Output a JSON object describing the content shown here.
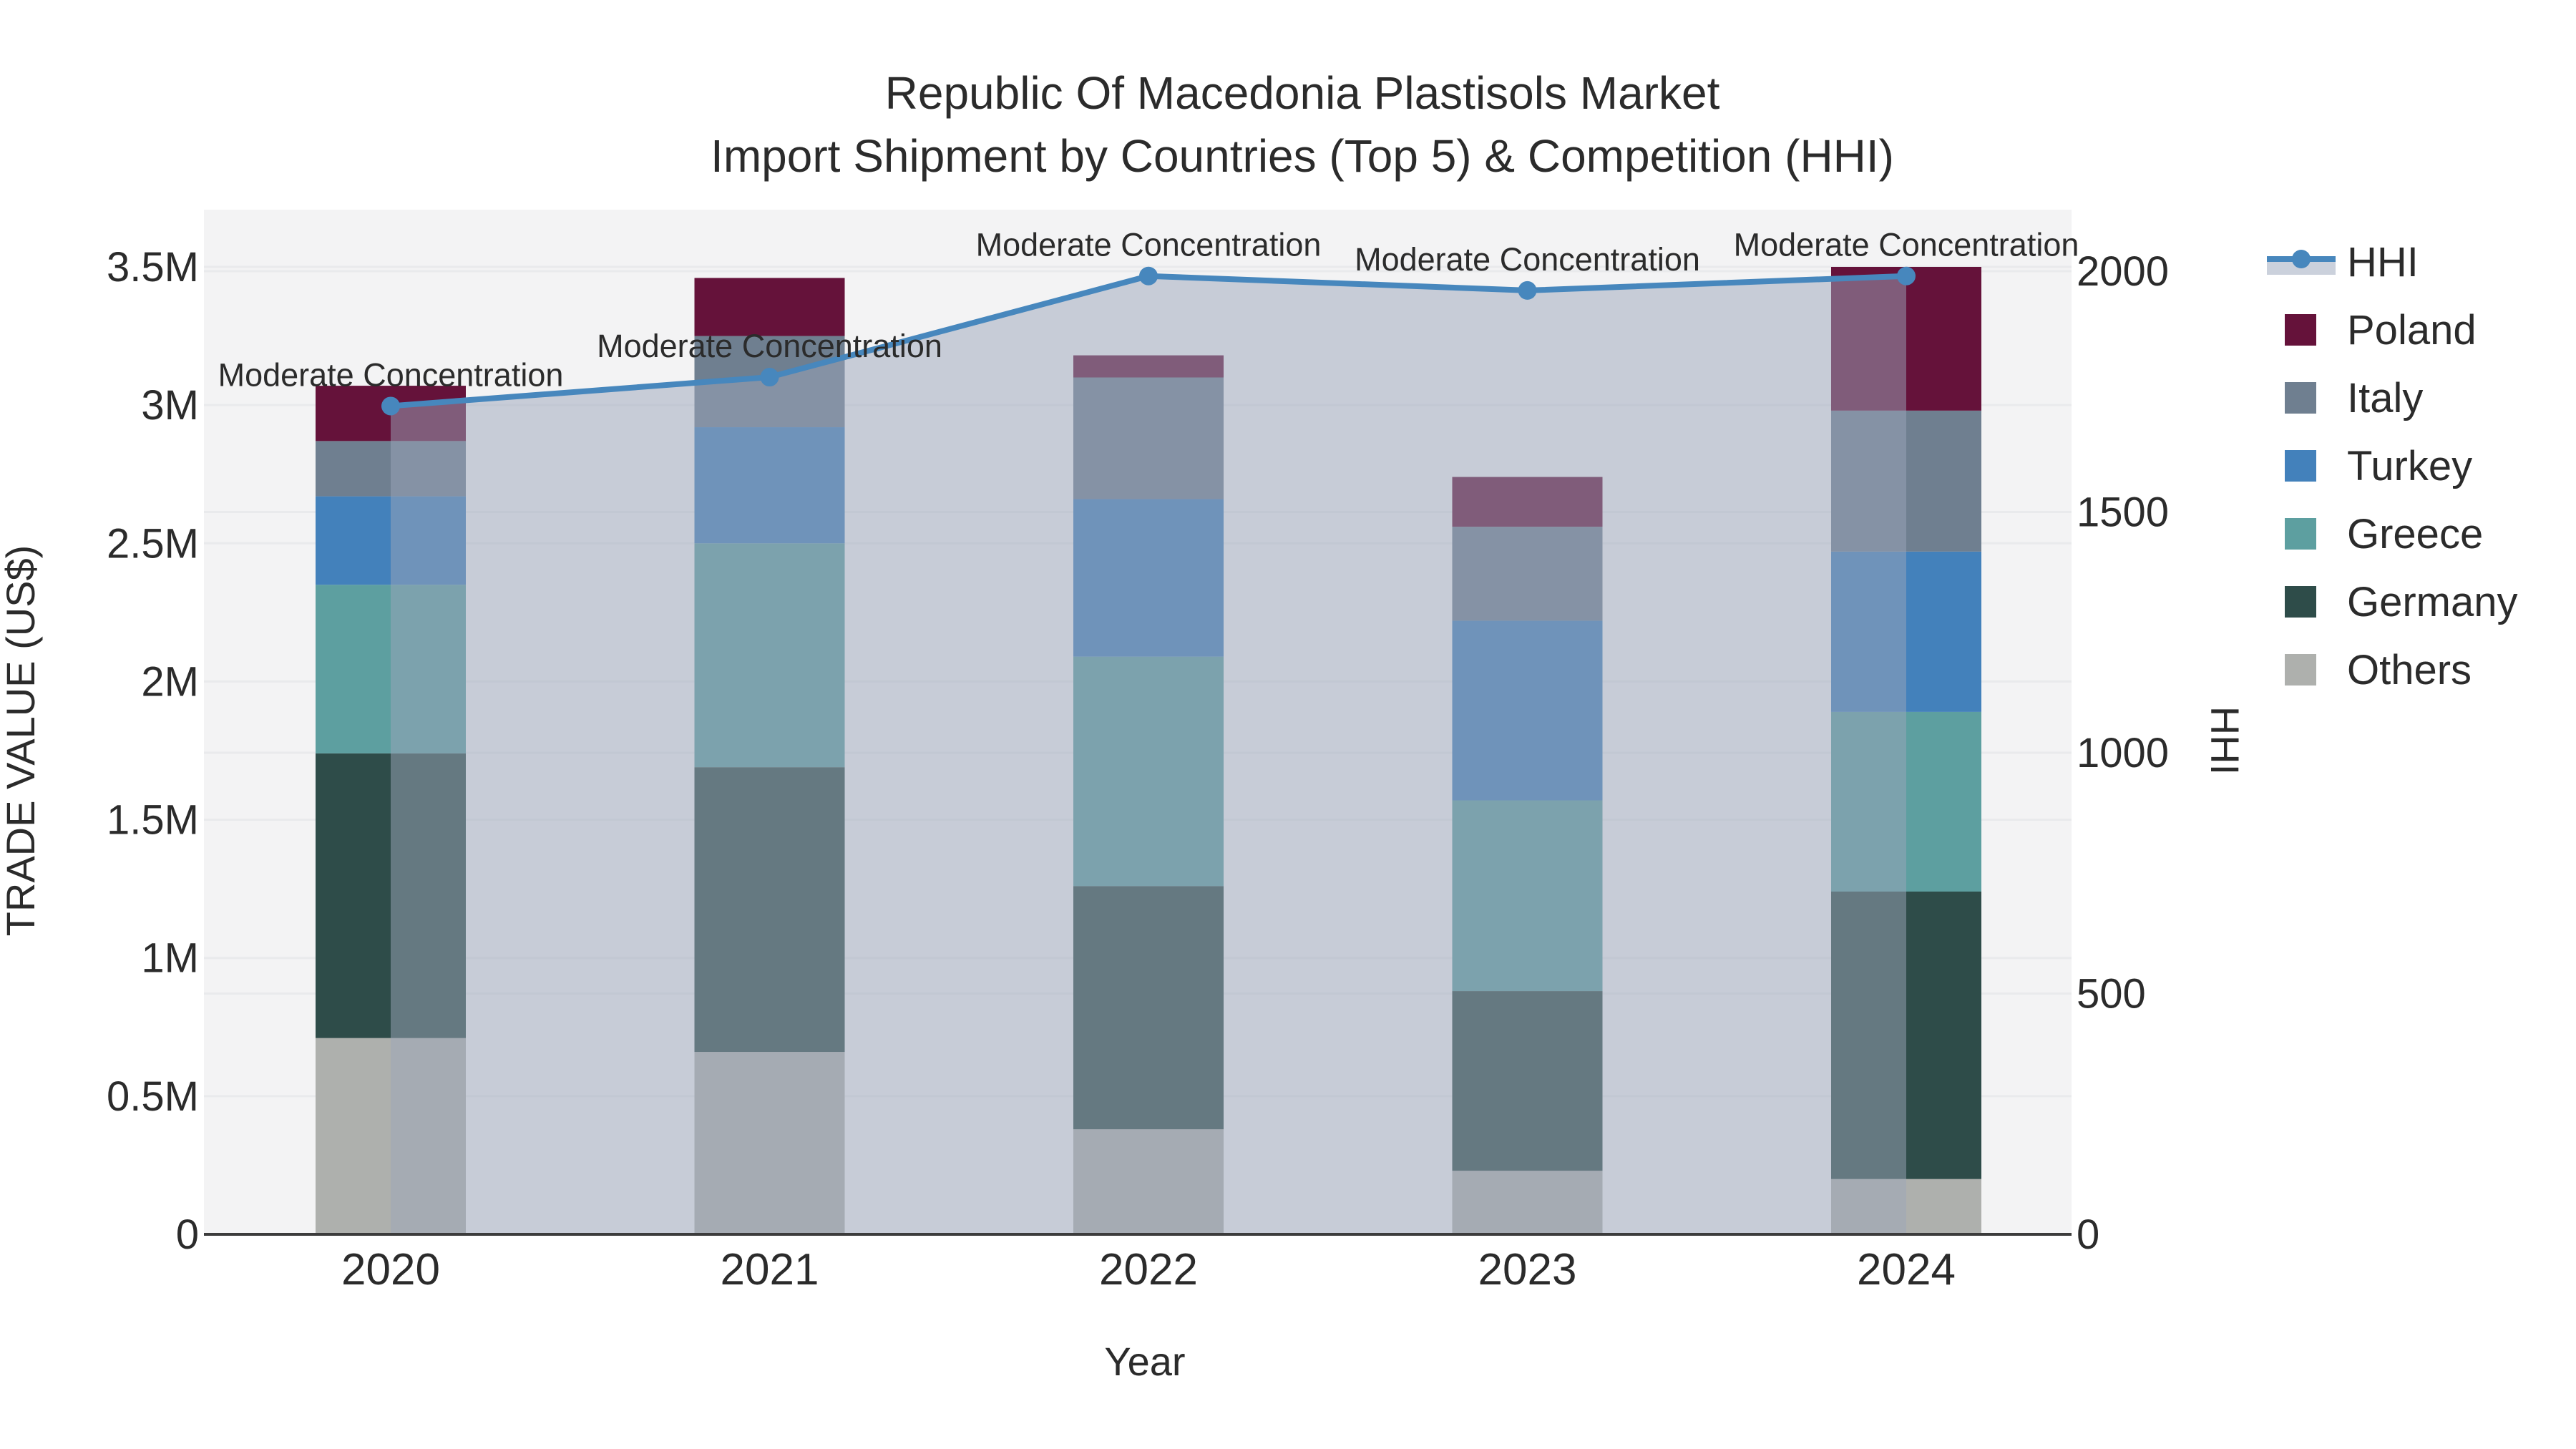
{
  "title": {
    "line1": "Republic Of Macedonia Plastisols Market",
    "line2": "Import Shipment by Countries (Top 5) & Competition (HHI)"
  },
  "axes": {
    "x": {
      "title": "Year",
      "categories": [
        "2020",
        "2021",
        "2022",
        "2023",
        "2024"
      ]
    },
    "y_left": {
      "title": "TRADE VALUE (US$)",
      "tick_labels": [
        "0",
        "0.5M",
        "1M",
        "1.5M",
        "2M",
        "2.5M",
        "3M",
        "3.5M"
      ],
      "tick_values_musd": [
        0,
        0.5,
        1,
        1.5,
        2,
        2.5,
        3,
        3.5
      ],
      "range_musd": [
        0,
        3.71
      ]
    },
    "y_right": {
      "title": "HHI",
      "tick_labels": [
        "0",
        "500",
        "1000",
        "1500",
        "2000"
      ],
      "tick_values": [
        0,
        500,
        1000,
        1500,
        2000
      ],
      "range": [
        0,
        2000
      ]
    }
  },
  "legend": {
    "items": [
      {
        "label": "HHI",
        "type": "line",
        "color": "#4787BD"
      },
      {
        "label": "Poland",
        "type": "swatch",
        "color": "#65123A"
      },
      {
        "label": "Italy",
        "type": "swatch",
        "color": "#6F7F90"
      },
      {
        "label": "Turkey",
        "type": "swatch",
        "color": "#4381BB"
      },
      {
        "label": "Greece",
        "type": "swatch",
        "color": "#5D9FA0"
      },
      {
        "label": "Germany",
        "type": "swatch",
        "color": "#2E4C49"
      },
      {
        "label": "Others",
        "type": "swatch",
        "color": "#AEB0AD"
      }
    ]
  },
  "annotations": [
    "Moderate Concentration",
    "Moderate Concentration",
    "Moderate Concentration",
    "Moderate Concentration",
    "Moderate Concentration"
  ],
  "chart_data": [
    {
      "type": "bar",
      "stacked": true,
      "title": "Republic Of Macedonia Plastisols Market - Import Shipment by Countries (Top 5)",
      "xlabel": "Year",
      "ylabel": "TRADE VALUE (US$)",
      "ylim": [
        0,
        3700000
      ],
      "grid": true,
      "legend_position": "right",
      "categories": [
        "2020",
        "2021",
        "2022",
        "2023",
        "2024"
      ],
      "series_stack_order": "bottom_to_top",
      "series": [
        {
          "name": "Others",
          "color": "#AEB0AD",
          "values": [
            710000,
            660000,
            380000,
            230000,
            200000
          ]
        },
        {
          "name": "Germany",
          "color": "#2E4C49",
          "values": [
            1030000,
            1030000,
            880000,
            650000,
            1040000
          ]
        },
        {
          "name": "Greece",
          "color": "#5D9FA0",
          "values": [
            610000,
            810000,
            830000,
            690000,
            650000
          ]
        },
        {
          "name": "Turkey",
          "color": "#4381BB",
          "values": [
            320000,
            420000,
            570000,
            650000,
            580000
          ]
        },
        {
          "name": "Italy",
          "color": "#6F7F90",
          "values": [
            200000,
            330000,
            440000,
            340000,
            510000
          ]
        },
        {
          "name": "Poland",
          "color": "#65123A",
          "values": [
            200000,
            210000,
            80000,
            180000,
            520000
          ]
        }
      ],
      "totals": [
        3070000,
        3460000,
        3180000,
        2740000,
        3500000
      ]
    },
    {
      "type": "line",
      "name": "HHI",
      "axis": "right",
      "x": [
        "2020",
        "2021",
        "2022",
        "2023",
        "2024"
      ],
      "values": [
        1720,
        1780,
        1990,
        1960,
        1990
      ],
      "ylim": [
        0,
        2000
      ],
      "color": "#4787BD",
      "markers": true,
      "area_fill": "rgba(155,166,185,0.5)"
    }
  ],
  "colors": {
    "background": "#FFFFFF",
    "plot_background": "#F3F3F4",
    "gridline": "#E9EAEC",
    "axis_line": "#3C3C3C",
    "text": "#2B2B2B",
    "hhi_line": "#4787BD",
    "hhi_area": "rgba(155,166,185,0.5)"
  }
}
